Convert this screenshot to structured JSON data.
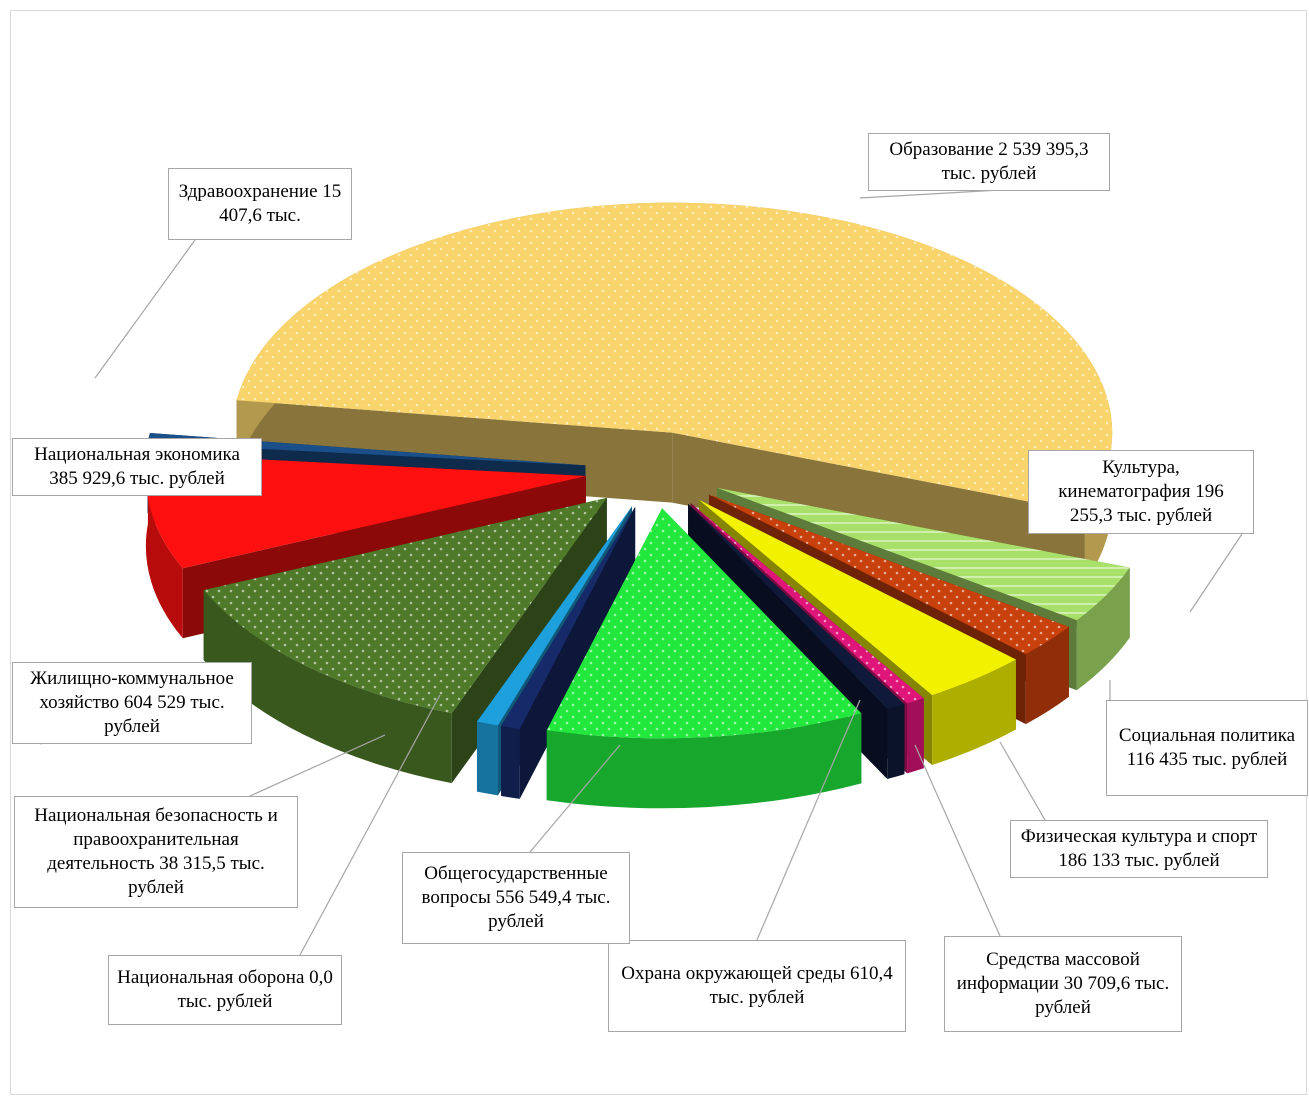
{
  "chart_data": {
    "type": "pie",
    "title": "",
    "categories": [
      "Образование",
      "Культура, кинематография",
      "Социальная политика",
      "Физическая культура и спорт",
      "Средства массовой информации",
      "Охрана окружающей среды",
      "Общегосударственные вопросы",
      "Национальная оборона",
      "Национальная безопасность и правоохранительная деятельность",
      "Жилищно-коммунальное хозяйство",
      "Национальная экономика",
      "Здравоохранение"
    ],
    "values": [
      2539395.3,
      196255.3,
      116435,
      186133,
      30709.6,
      610.4,
      556549.4,
      0.0,
      38315.5,
      604529,
      385929.6,
      15407.6
    ],
    "unit": "тыс. рублей",
    "colors": [
      "#f9d46b",
      "#a9e06a",
      "#c8400c",
      "#f2f200",
      "#e0157a",
      "#0f1a3a",
      "#22e83e",
      "#162a6a",
      "#1ea0dc",
      "#4f7a2a",
      "#ff1010",
      "#1a4f8a"
    ],
    "labels": [
      "Образование 2 539 395,3 тыс. рублей",
      "Культура, кинематография 196 255,3 тыс. рублей",
      "Социальная политика 116 435 тыс. рублей",
      "Физическая культура и спорт 186 133 тыс. рублей",
      "Средства массовой информации 30 709,6 тыс. рублей",
      "Охрана окружающей среды 610,4 тыс. рублей",
      "Общегосударственные вопросы 556 549,4 тыс. рублей",
      "Национальная оборона 0,0 тыс. рублей",
      "Национальная безопасность и правоохранительная деятельность 38 315,5 тыс. рублей",
      "Жилищно-коммунальное хозяйство 604 529 тыс. рублей",
      "Национальная экономика 385 929,6 тыс. рублей",
      "Здравоохранение 15 407,6 тыс."
    ],
    "legend": "none"
  }
}
